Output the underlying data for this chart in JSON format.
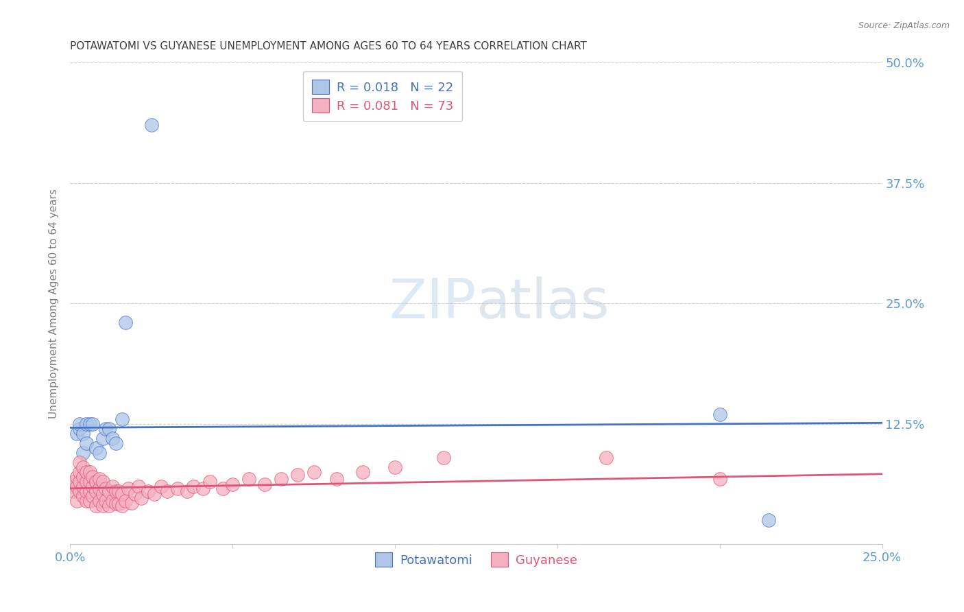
{
  "title": "POTAWATOMI VS GUYANESE UNEMPLOYMENT AMONG AGES 60 TO 64 YEARS CORRELATION CHART",
  "source": "Source: ZipAtlas.com",
  "ylabel": "Unemployment Among Ages 60 to 64 years",
  "xlim": [
    0.0,
    0.25
  ],
  "ylim": [
    0.0,
    0.5
  ],
  "xticks": [
    0.0,
    0.05,
    0.1,
    0.15,
    0.2,
    0.25
  ],
  "yticks": [
    0.0,
    0.125,
    0.25,
    0.375,
    0.5
  ],
  "potawatomi_R": 0.018,
  "potawatomi_N": 22,
  "guyanese_R": 0.081,
  "guyanese_N": 73,
  "potawatomi_color": "#aec6e8",
  "guyanese_color": "#f4afc0",
  "trendline_potawatomi_color": "#4472c4",
  "trendline_guyanese_color": "#e05575",
  "background_color": "#ffffff",
  "grid_color": "#d0d0d0",
  "title_color": "#404040",
  "axis_label_color": "#808080",
  "tick_label_color": "#5b9bd5",
  "source_color": "#808080",
  "potawatomi_trend_start": 0.121,
  "potawatomi_trend_end": 0.126,
  "guyanese_trend_start": 0.058,
  "guyanese_trend_end": 0.073,
  "potawatomi_x": [
    0.001,
    0.002,
    0.003,
    0.003,
    0.004,
    0.004,
    0.005,
    0.005,
    0.006,
    0.007,
    0.008,
    0.009,
    0.01,
    0.011,
    0.012,
    0.013,
    0.014,
    0.016,
    0.017,
    0.025,
    0.2,
    0.215
  ],
  "potawatomi_y": [
    0.06,
    0.115,
    0.12,
    0.125,
    0.095,
    0.115,
    0.105,
    0.125,
    0.125,
    0.125,
    0.1,
    0.095,
    0.11,
    0.12,
    0.12,
    0.11,
    0.105,
    0.13,
    0.23,
    0.435,
    0.135,
    0.025
  ],
  "guyanese_x": [
    0.001,
    0.001,
    0.002,
    0.002,
    0.002,
    0.003,
    0.003,
    0.003,
    0.003,
    0.004,
    0.004,
    0.004,
    0.004,
    0.005,
    0.005,
    0.005,
    0.005,
    0.006,
    0.006,
    0.006,
    0.006,
    0.007,
    0.007,
    0.007,
    0.008,
    0.008,
    0.008,
    0.009,
    0.009,
    0.009,
    0.01,
    0.01,
    0.01,
    0.011,
    0.011,
    0.012,
    0.012,
    0.013,
    0.013,
    0.014,
    0.014,
    0.015,
    0.015,
    0.016,
    0.016,
    0.017,
    0.018,
    0.019,
    0.02,
    0.021,
    0.022,
    0.024,
    0.026,
    0.028,
    0.03,
    0.033,
    0.036,
    0.038,
    0.041,
    0.043,
    0.047,
    0.05,
    0.055,
    0.06,
    0.065,
    0.07,
    0.075,
    0.082,
    0.09,
    0.1,
    0.115,
    0.165,
    0.2
  ],
  "guyanese_y": [
    0.055,
    0.065,
    0.045,
    0.06,
    0.07,
    0.055,
    0.065,
    0.075,
    0.085,
    0.05,
    0.06,
    0.07,
    0.08,
    0.045,
    0.055,
    0.065,
    0.075,
    0.045,
    0.055,
    0.065,
    0.075,
    0.05,
    0.06,
    0.07,
    0.04,
    0.055,
    0.065,
    0.045,
    0.058,
    0.068,
    0.04,
    0.052,
    0.065,
    0.045,
    0.058,
    0.04,
    0.055,
    0.045,
    0.06,
    0.042,
    0.055,
    0.042,
    0.055,
    0.04,
    0.052,
    0.045,
    0.058,
    0.043,
    0.052,
    0.06,
    0.048,
    0.055,
    0.052,
    0.06,
    0.055,
    0.058,
    0.055,
    0.06,
    0.058,
    0.065,
    0.058,
    0.062,
    0.068,
    0.062,
    0.068,
    0.072,
    0.075,
    0.068,
    0.075,
    0.08,
    0.09,
    0.09,
    0.068
  ]
}
